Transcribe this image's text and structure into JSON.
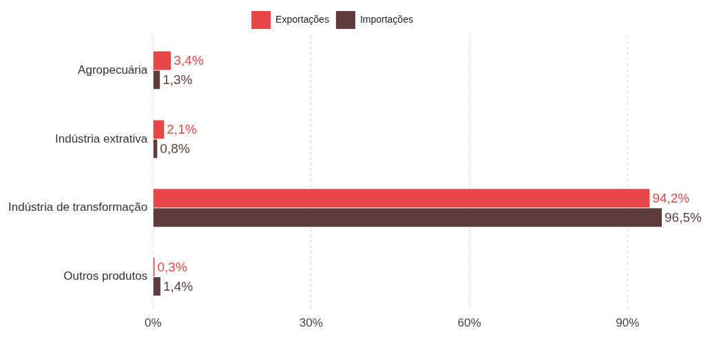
{
  "chart_data": {
    "type": "bar",
    "orientation": "horizontal",
    "categories": [
      "Agropecuária",
      "Indústria extrativa",
      "Indústria de transformação",
      "Outros produtos"
    ],
    "series": [
      {
        "name": "Exportações",
        "color": "#e8474a",
        "values": [
          3.4,
          2.1,
          94.2,
          0.3
        ],
        "value_labels": [
          "3,4%",
          "2,1%",
          "94,2%",
          "0,3%"
        ]
      },
      {
        "name": "Importações",
        "color": "#5f3d3d",
        "values": [
          1.3,
          0.8,
          96.5,
          1.4
        ],
        "value_labels": [
          "1,3%",
          "0,8%",
          "96,5%",
          "1,4%"
        ]
      }
    ],
    "xlim": [
      0,
      96.5
    ],
    "xticks": [
      {
        "value": 0,
        "label": "0%"
      },
      {
        "value": 30,
        "label": "30%"
      },
      {
        "value": 60,
        "label": "60%"
      },
      {
        "value": 90,
        "label": "90%"
      }
    ],
    "grid": "x",
    "legend": "top"
  }
}
